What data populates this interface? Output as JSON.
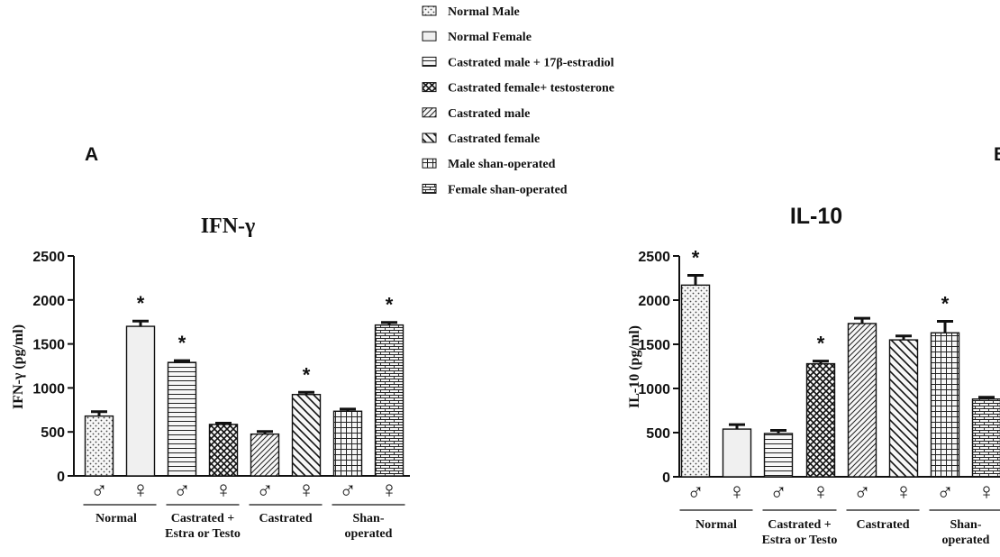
{
  "panels": [
    {
      "label": "A",
      "title": "IFN-γ"
    },
    {
      "label": "B",
      "title": "IL-10"
    }
  ],
  "legend": [
    {
      "label": "Normal Male",
      "pattern": "pat-dots"
    },
    {
      "label": "Normal Female",
      "pattern": "pat-plain"
    },
    {
      "label": "Castrated male + 17β-estradiol",
      "pattern": "pat-hlines"
    },
    {
      "label": "Castrated female+ testosterone",
      "pattern": "pat-cross"
    },
    {
      "label": "Castrated male",
      "pattern": "pat-diag"
    },
    {
      "label": "Castrated female",
      "pattern": "pat-backdiag"
    },
    {
      "label": "Male shan-operated",
      "pattern": "pat-grid"
    },
    {
      "label": "Female shan-operated",
      "pattern": "pat-brick"
    }
  ],
  "sex_symbols": [
    "♂",
    "♀"
  ],
  "group_labels": [
    [
      "Normal"
    ],
    [
      "Castrated +",
      "Estra or  Testo"
    ],
    [
      "Castrated"
    ],
    [
      "Shan-",
      "operated"
    ]
  ],
  "colors": {
    "bar_fill": "#f2f2f2",
    "ink": "#111111"
  },
  "chart_data": [
    {
      "type": "bar",
      "title": "IFN-γ",
      "ylabel": "IFN-γ (pg/ml)",
      "ylim": [
        0,
        2500
      ],
      "yticks": [
        0,
        500,
        1000,
        1500,
        2000,
        2500
      ],
      "categories": [
        "Normal Male",
        "Normal Female",
        "Castrated male + 17β-estradiol",
        "Castrated female+ testosterone",
        "Castrated male",
        "Castrated female",
        "Male shan-operated",
        "Female shan-operated"
      ],
      "values": [
        680,
        1700,
        1290,
        585,
        475,
        925,
        735,
        1715
      ],
      "errors": [
        50,
        60,
        20,
        15,
        30,
        25,
        25,
        30
      ],
      "significant": [
        false,
        true,
        true,
        false,
        false,
        true,
        false,
        true
      ]
    },
    {
      "type": "bar",
      "title": "IL-10",
      "ylabel": "IL-10 (pg/ml)",
      "ylim": [
        0,
        2500
      ],
      "yticks": [
        0,
        500,
        1000,
        1500,
        2000,
        2500
      ],
      "categories": [
        "Normal Male",
        "Normal Female",
        "Castrated male + 17β-estradiol",
        "Castrated female+ testosterone",
        "Castrated male",
        "Castrated female",
        "Male shan-operated",
        "Female shan-operated"
      ],
      "values": [
        2170,
        540,
        490,
        1280,
        1735,
        1550,
        1630,
        880
      ],
      "errors": [
        110,
        50,
        35,
        30,
        60,
        45,
        130,
        20
      ],
      "significant": [
        true,
        false,
        false,
        true,
        false,
        false,
        true,
        false
      ]
    }
  ]
}
